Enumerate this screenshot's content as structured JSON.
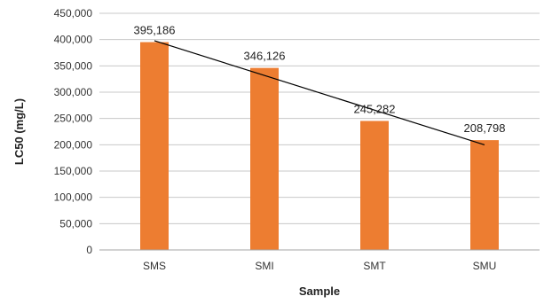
{
  "chart_data": {
    "type": "bar",
    "title": "",
    "xlabel": "Sample",
    "ylabel": "LC50 (mg/L)",
    "categories": [
      "SMS",
      "SMI",
      "SMT",
      "SMU"
    ],
    "values": [
      395186,
      346126,
      245282,
      208798
    ],
    "data_labels": [
      "395,186",
      "346,126",
      "245,282",
      "208,798"
    ],
    "ylim": [
      0,
      450000
    ],
    "yticks": [
      0,
      50000,
      100000,
      150000,
      200000,
      250000,
      300000,
      350000,
      400000,
      450000
    ],
    "ytick_labels": [
      "0",
      "50,000",
      "100,000",
      "150,000",
      "200,000",
      "250,000",
      "300,000",
      "350,000",
      "400,000",
      "450,000"
    ],
    "grid": true,
    "legend": "none",
    "trendline": "linear",
    "bar_color": "#ED7D31",
    "trendline_color": "#000000"
  }
}
